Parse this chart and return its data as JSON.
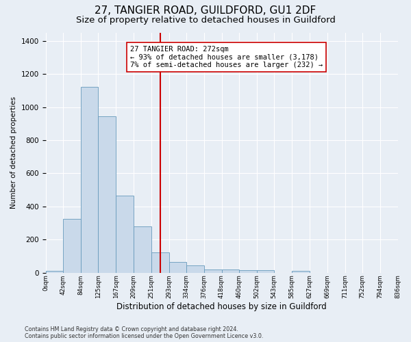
{
  "title": "27, TANGIER ROAD, GUILDFORD, GU1 2DF",
  "subtitle": "Size of property relative to detached houses in Guildford",
  "xlabel": "Distribution of detached houses by size in Guildford",
  "ylabel": "Number of detached properties",
  "bin_edges": [
    0,
    42,
    84,
    125,
    167,
    209,
    251,
    293,
    334,
    376,
    418,
    460,
    502,
    543,
    585,
    627,
    669,
    711,
    752,
    794,
    836
  ],
  "bar_heights": [
    10,
    325,
    1120,
    945,
    465,
    280,
    125,
    65,
    45,
    20,
    20,
    15,
    15,
    0,
    10,
    0,
    0,
    0,
    0,
    0
  ],
  "tick_labels": [
    "0sqm",
    "42sqm",
    "84sqm",
    "125sqm",
    "167sqm",
    "209sqm",
    "251sqm",
    "293sqm",
    "334sqm",
    "376sqm",
    "418sqm",
    "460sqm",
    "502sqm",
    "543sqm",
    "585sqm",
    "627sqm",
    "669sqm",
    "711sqm",
    "752sqm",
    "794sqm",
    "836sqm"
  ],
  "bar_color": "#c9d9ea",
  "bar_edge_color": "#6699bb",
  "background_color": "#e8eef5",
  "grid_color": "#ffffff",
  "vline_x": 272,
  "vline_color": "#cc0000",
  "annotation_text": "27 TANGIER ROAD: 272sqm\n← 93% of detached houses are smaller (3,178)\n7% of semi-detached houses are larger (232) →",
  "annotation_box_color": "#ffffff",
  "annotation_box_edge": "#cc0000",
  "footer_text": "Contains HM Land Registry data © Crown copyright and database right 2024.\nContains public sector information licensed under the Open Government Licence v3.0.",
  "ylim": [
    0,
    1450
  ],
  "title_fontsize": 11,
  "subtitle_fontsize": 9.5
}
